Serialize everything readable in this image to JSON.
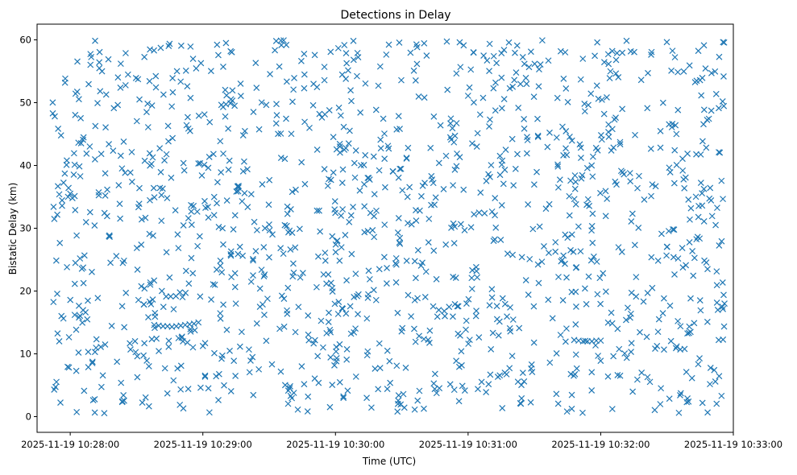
{
  "chart_data": {
    "type": "scatter",
    "title": "Detections in Delay",
    "xlabel": "Time (UTC)",
    "ylabel": "Bistatic Delay (km)",
    "marker": "x",
    "color": "#1f77b4",
    "grid": false,
    "xlim": [
      "2025-11-19 10:27:45",
      "2025-11-19 10:33:00"
    ],
    "ylim": [
      -2.5,
      62.5
    ],
    "x_ticks": [
      "2025-11-19 10:28:00",
      "2025-11-19 10:29:00",
      "2025-11-19 10:30:00",
      "2025-11-19 10:31:00",
      "2025-11-19 10:32:00",
      "2025-11-19 10:33:00"
    ],
    "y_ticks": [
      0,
      10,
      20,
      30,
      40,
      50,
      60
    ],
    "data_time_range": [
      "2025-11-19 10:27:52",
      "2025-11-19 10:32:56"
    ],
    "notes": "Roughly uniform scatter of detections between 0 and 60 km across the time span, with short horizontal tracks near 14.5 km (10:28:40-10:28:59) and 12 km (10:31:50-10:32:00).",
    "point_count": 1400,
    "series": [
      {
        "points": [
          [
            "2025-11-19 10:28:38",
            14.6
          ],
          [
            "2025-11-19 10:28:40",
            14.5
          ],
          [
            "2025-11-19 10:28:42",
            14.4
          ],
          [
            "2025-11-19 10:28:44",
            14.4
          ],
          [
            "2025-11-19 10:28:46",
            14.3
          ],
          [
            "2025-11-19 10:28:48",
            14.4
          ],
          [
            "2025-11-19 10:28:50",
            14.5
          ],
          [
            "2025-11-19 10:28:52",
            14.6
          ],
          [
            "2025-11-19 10:28:54",
            14.7
          ],
          [
            "2025-11-19 10:28:56",
            14.8
          ],
          [
            "2025-11-19 10:28:58",
            15.0
          ],
          [
            "2025-11-19 10:31:48",
            12.2
          ],
          [
            "2025-11-19 10:31:50",
            12.1
          ],
          [
            "2025-11-19 10:31:52",
            12.0
          ],
          [
            "2025-11-19 10:31:54",
            12.0
          ],
          [
            "2025-11-19 10:31:56",
            12.0
          ],
          [
            "2025-11-19 10:31:58",
            12.1
          ],
          [
            "2025-11-19 10:32:00",
            12.1
          ],
          [
            "2025-11-19 10:28:49",
            12.5
          ],
          [
            "2025-11-19 10:28:51",
            12.0
          ],
          [
            "2025-11-19 10:28:53",
            11.8
          ],
          [
            "2025-11-19 10:30:11",
            36.0
          ],
          [
            "2025-11-19 10:30:13",
            37.0
          ],
          [
            "2025-11-19 10:30:15",
            38.0
          ],
          [
            "2025-11-19 10:27:59",
            35.0
          ],
          [
            "2025-11-19 10:28:00",
            35.5
          ],
          [
            "2025-11-19 10:28:01",
            34.8
          ],
          [
            "2025-11-19 10:30:02",
            43.0
          ],
          [
            "2025-11-19 10:30:04",
            42.5
          ],
          [
            "2025-11-19 10:30:06",
            43.5
          ],
          [
            "2025-11-19 10:31:45",
            28.5
          ],
          [
            "2025-11-19 10:31:47",
            29.0
          ],
          [
            "2025-11-19 10:32:52",
            30.5
          ],
          [
            "2025-11-19 10:32:53",
            17.0
          ],
          [
            "2025-11-19 10:32:55",
            17.5
          ],
          [
            "2025-11-19 10:32:56",
            18.0
          ]
        ]
      }
    ]
  }
}
